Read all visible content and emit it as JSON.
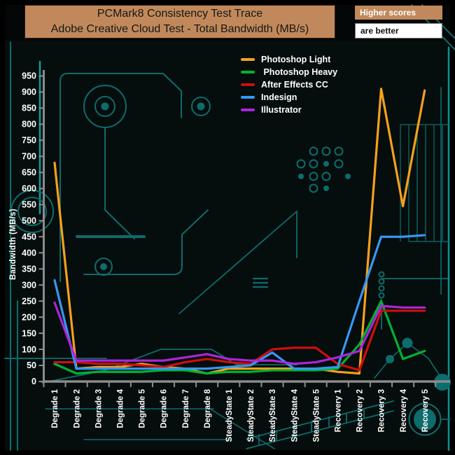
{
  "header": {
    "title_line1": "PCMark8 Consistency Test Trace",
    "title_line2": "Adobe Creative Cloud Test - Total Bandwidth (MB/s)",
    "note_line1": "Higher scores",
    "note_line2": "are better"
  },
  "colors": {
    "title_box_bg": "#C1895B",
    "title_text": "#161616",
    "note_top_bg": "#C1895B",
    "note_top_text": "#FFFFFF",
    "note_bottom_bg": "#FFFFFF",
    "note_bottom_text": "#111111",
    "axis": "#8C8C8C",
    "tick_label": "#FFFFFF",
    "background": "#060D0D",
    "circuit_trace": "#0D6C6C"
  },
  "chart_data": {
    "type": "line",
    "title": "PCMark8 Consistency Test Trace — Adobe Creative Cloud Test - Total Bandwidth (MB/s)",
    "ylabel": "Bandwidth (MB/s)",
    "xlabel": "",
    "ylim": [
      0,
      950
    ],
    "ytick_step": 50,
    "grid": false,
    "legend_position": "top-center-inside",
    "categories": [
      "Degrade 1",
      "Degrade 2",
      "Degrade 3",
      "Degrade 4",
      "Degrade 5",
      "Degrade 6",
      "Degrade 7",
      "Degrade 8",
      "SteadyState 1",
      "SteadyState 2",
      "SteadyState 3",
      "SteadyState 4",
      "SteadyState 5",
      "Recovery 1",
      "Recovery 2",
      "Recovery 3",
      "Recovery 4",
      "Recovery 5"
    ],
    "series": [
      {
        "name": "Photoshop Light",
        "color": "#F5A11C",
        "values": [
          680,
          40,
          45,
          45,
          55,
          45,
          40,
          25,
          40,
          40,
          40,
          40,
          40,
          30,
          25,
          910,
          545,
          905
        ]
      },
      {
        "name": " Photoshop Heavy",
        "color": "#00B232",
        "values": [
          55,
          25,
          30,
          30,
          30,
          35,
          35,
          25,
          30,
          30,
          35,
          35,
          35,
          40,
          115,
          250,
          70,
          95
        ]
      },
      {
        "name": "After Effects CC",
        "color": "#CE0E0E",
        "values": [
          60,
          60,
          55,
          55,
          50,
          45,
          60,
          70,
          60,
          55,
          100,
          105,
          105,
          55,
          35,
          220,
          220,
          220
        ]
      },
      {
        "name": "Indesign",
        "color": "#3598F5",
        "values": [
          315,
          40,
          40,
          40,
          40,
          40,
          40,
          40,
          45,
          50,
          90,
          40,
          40,
          45,
          250,
          450,
          450,
          455
        ]
      },
      {
        "name": "Illustrator",
        "color": "#AC26D8",
        "values": [
          245,
          65,
          65,
          65,
          65,
          65,
          75,
          85,
          70,
          65,
          65,
          55,
          60,
          75,
          95,
          235,
          230,
          230
        ]
      }
    ]
  }
}
